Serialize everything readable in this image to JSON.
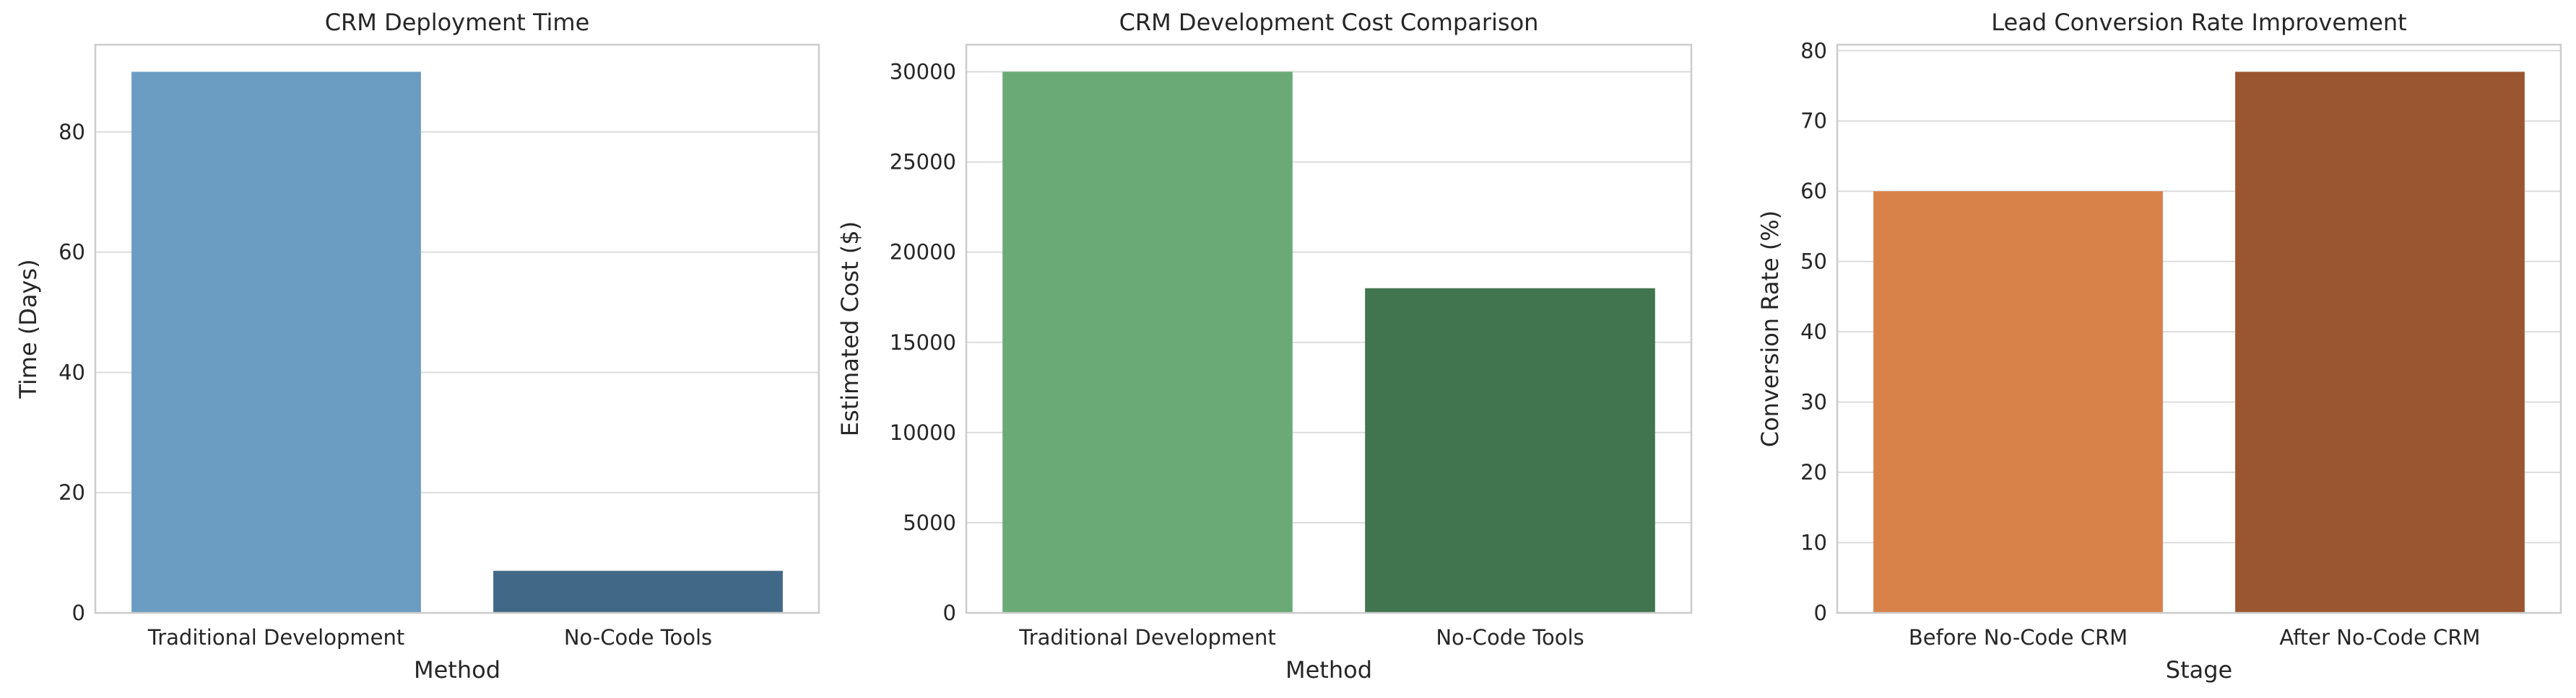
{
  "chart_data": [
    {
      "type": "bar",
      "title": "CRM Deployment Time",
      "xlabel": "Method",
      "ylabel": "Time (Days)",
      "categories": [
        "Traditional Development",
        "No-Code Tools"
      ],
      "values": [
        90,
        7
      ],
      "colors": [
        "#6b9dc2",
        "#416887"
      ],
      "ylim": [
        0,
        94.5
      ],
      "yticks": [
        0,
        20,
        40,
        60,
        80
      ],
      "grid": true
    },
    {
      "type": "bar",
      "title": "CRM Development Cost Comparison",
      "xlabel": "Method",
      "ylabel": "Estimated Cost ($)",
      "categories": [
        "Traditional Development",
        "No-Code Tools"
      ],
      "values": [
        30000,
        18000
      ],
      "colors": [
        "#6aaa76",
        "#40754f"
      ],
      "ylim": [
        0,
        31500
      ],
      "yticks": [
        0,
        5000,
        10000,
        15000,
        20000,
        25000,
        30000
      ],
      "grid": true
    },
    {
      "type": "bar",
      "title": "Lead Conversion Rate Improvement",
      "xlabel": "Stage",
      "ylabel": "Conversion Rate (%)",
      "categories": [
        "Before No-Code CRM",
        "After No-Code CRM"
      ],
      "values": [
        60,
        77
      ],
      "colors": [
        "#d8824a",
        "#9a5631"
      ],
      "ylim": [
        0,
        80.85
      ],
      "yticks": [
        0,
        10,
        20,
        30,
        40,
        50,
        60,
        70,
        80
      ],
      "grid": true
    }
  ]
}
